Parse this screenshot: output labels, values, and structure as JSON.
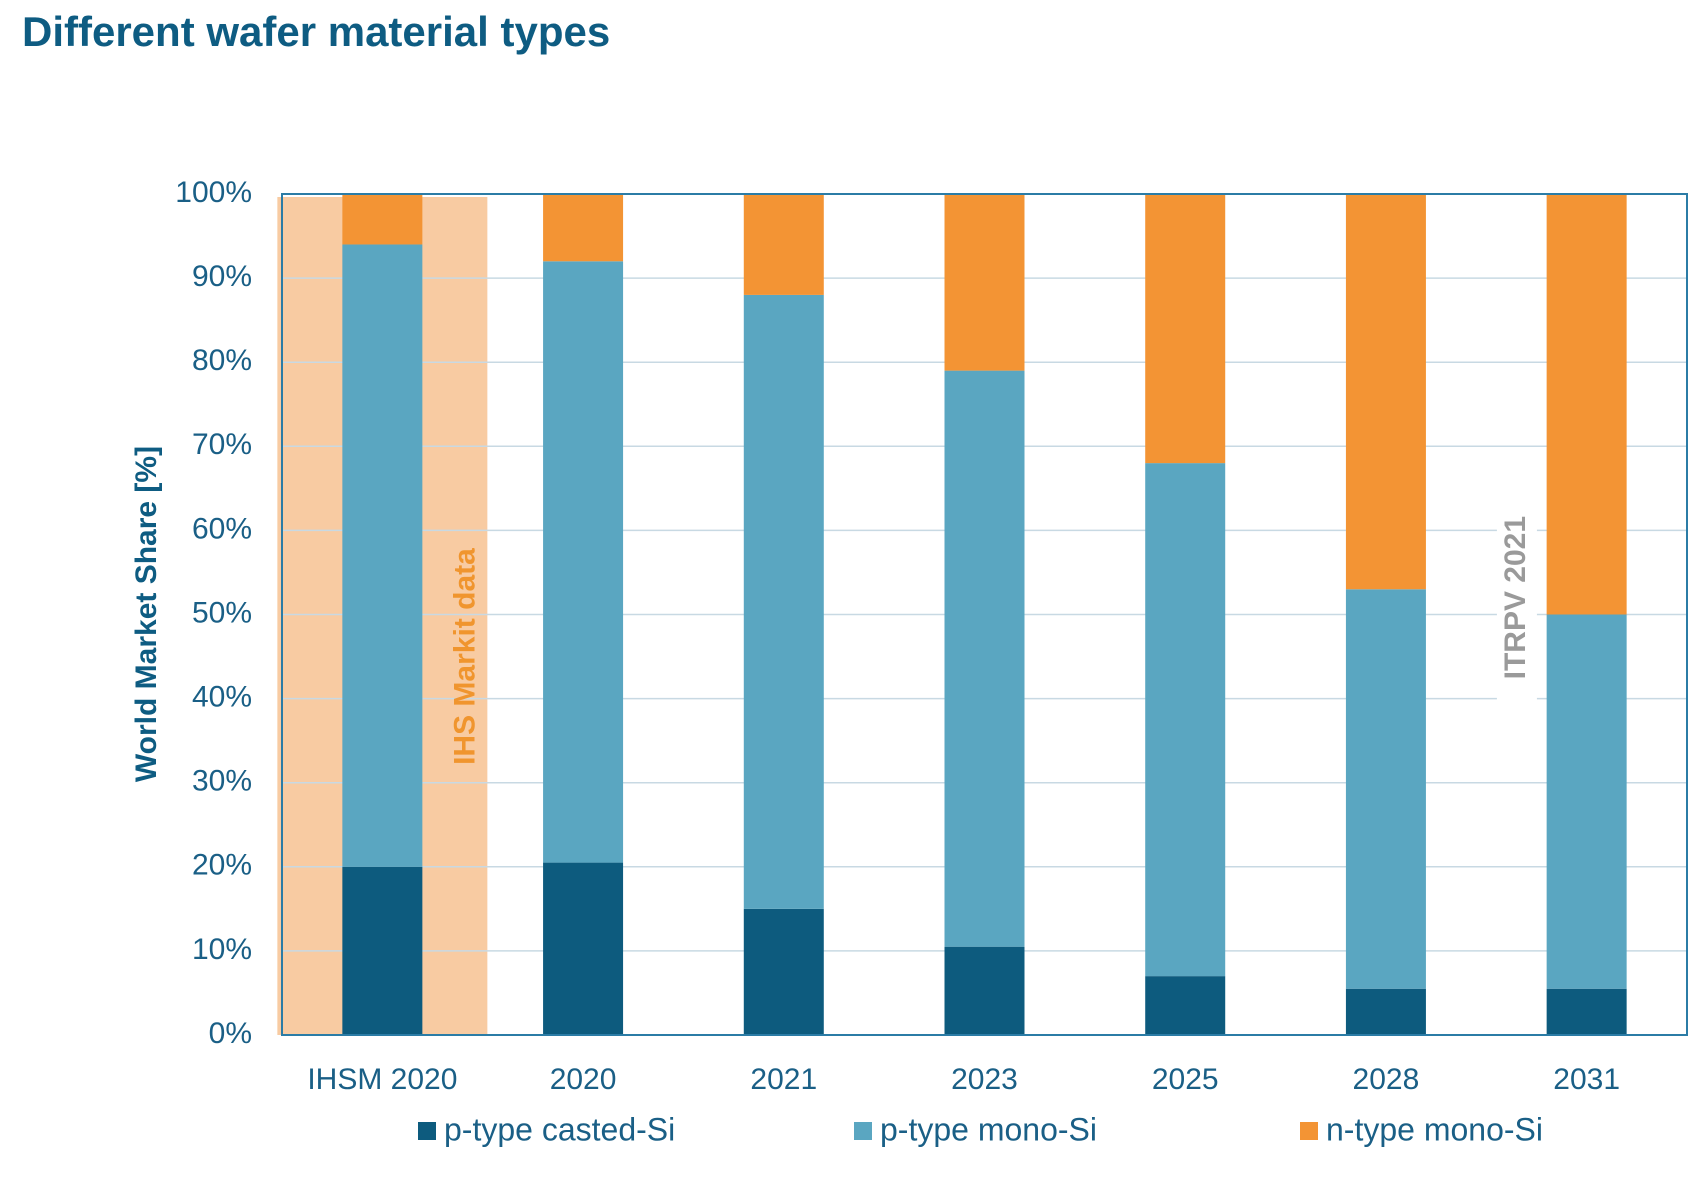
{
  "page": {
    "title": "Different wafer material types"
  },
  "colors": {
    "p_casted": "#0d5b7e",
    "p_mono": "#5aa6c1",
    "n_mono": "#f39434",
    "highlight": "#f8cba2",
    "grid": "#c8d9e3",
    "frame": "#2b7ca6",
    "text": "#1a5f86"
  },
  "chart_data": {
    "type": "bar",
    "stacked": true,
    "title": "Different wafer material types",
    "xlabel": "",
    "ylabel": "World Market Share [%]",
    "ylim": [
      0,
      100
    ],
    "yticks": [
      "0%",
      "10%",
      "20%",
      "30%",
      "40%",
      "50%",
      "60%",
      "70%",
      "80%",
      "90%",
      "100%"
    ],
    "categories": [
      "IHSM 2020",
      "2020",
      "2021",
      "2023",
      "2025",
      "2028",
      "2031"
    ],
    "series": [
      {
        "name": "p-type casted-Si",
        "values": [
          20,
          20.5,
          15,
          10.5,
          7,
          5.5,
          5.5
        ]
      },
      {
        "name": "p-type mono-Si",
        "values": [
          74,
          71.5,
          73,
          68.5,
          61,
          47.5,
          44.5
        ]
      },
      {
        "name": "n-type mono-Si",
        "values": [
          6,
          8,
          12,
          21,
          32,
          47,
          50
        ]
      }
    ],
    "grid": true,
    "legend_position": "bottom",
    "annotations": [
      {
        "text": "IHS Markit data",
        "category": "IHSM 2020"
      },
      {
        "text": "ITRPV 2021",
        "category": "2028"
      }
    ]
  }
}
